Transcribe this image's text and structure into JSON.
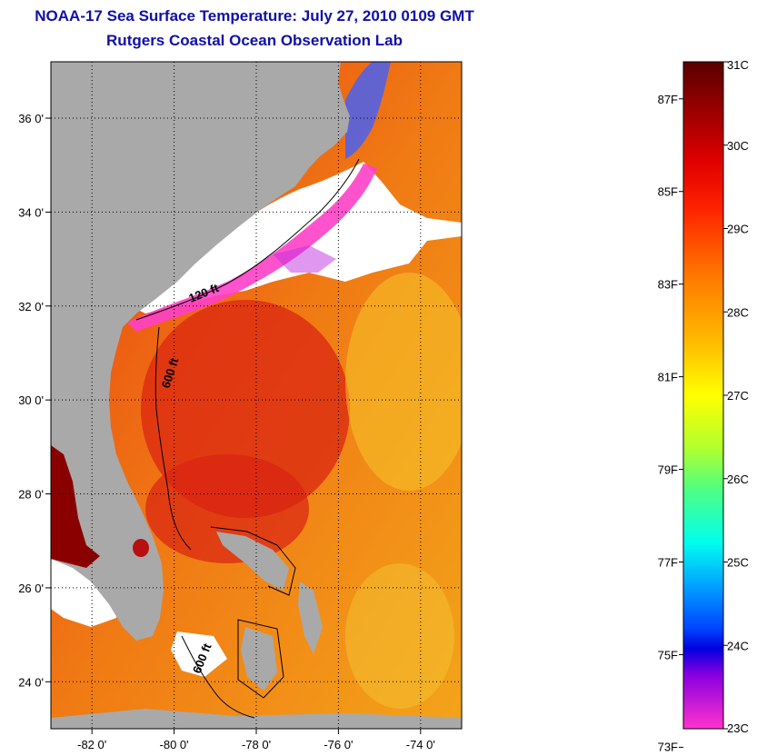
{
  "title": "NOAA-17 Sea Surface Temperature:  July 27, 2010 0109 GMT",
  "subtitle": "Rutgers Coastal Ocean Observation Lab",
  "map": {
    "lon_range": [
      -83,
      -73
    ],
    "lat_range": [
      23,
      37.2
    ],
    "lon_ticks": [
      {
        "value": -82,
        "label": "-82 0'"
      },
      {
        "value": -80,
        "label": "-80 0'"
      },
      {
        "value": -78,
        "label": "-78 0'"
      },
      {
        "value": -76,
        "label": "-76 0'"
      },
      {
        "value": -74,
        "label": "-74 0'"
      }
    ],
    "lat_ticks": [
      {
        "value": 24,
        "label": "24 0'"
      },
      {
        "value": 26,
        "label": "26 0'"
      },
      {
        "value": 28,
        "label": "28 0'"
      },
      {
        "value": 30,
        "label": "30 0'"
      },
      {
        "value": 32,
        "label": "32 0'"
      },
      {
        "value": 34,
        "label": "34 0'"
      },
      {
        "value": 36,
        "label": "36 0'"
      }
    ],
    "contour_labels": [
      {
        "text": "120 ft"
      },
      {
        "text": "600 ft"
      },
      {
        "text": "600 ft"
      }
    ],
    "colors": {
      "land": "#a9a9a9",
      "cloud": "#ffffff"
    }
  },
  "colorbar": {
    "celsius": [
      {
        "value": 31,
        "label": "31C"
      },
      {
        "value": 30,
        "label": "30C"
      },
      {
        "value": 29,
        "label": "29C"
      },
      {
        "value": 28,
        "label": "28C"
      },
      {
        "value": 27,
        "label": "27C"
      },
      {
        "value": 26,
        "label": "26C"
      },
      {
        "value": 25,
        "label": "25C"
      },
      {
        "value": 24,
        "label": "24C"
      },
      {
        "value": 23,
        "label": "23C"
      }
    ],
    "fahrenheit": [
      {
        "value": 87,
        "label": "87F"
      },
      {
        "value": 85,
        "label": "85F"
      },
      {
        "value": 83,
        "label": "83F"
      },
      {
        "value": 81,
        "label": "81F"
      },
      {
        "value": 79,
        "label": "79F"
      },
      {
        "value": 77,
        "label": "77F"
      },
      {
        "value": 75,
        "label": "75F"
      },
      {
        "value": 73,
        "label": "73F"
      }
    ]
  }
}
